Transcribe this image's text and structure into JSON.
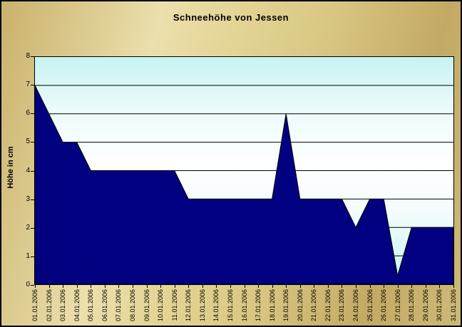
{
  "title": "Schneehöhe von Jessen",
  "colors": {
    "area_fill": "#000080",
    "area_stroke": "#000000",
    "grid_color": "#000000",
    "plot_bg_cyan": "#C7F3F3",
    "plot_bg_white": "#FFFFFF",
    "frame_gold_light": "#EBDFAC",
    "frame_gold_dark": "#C3AA64",
    "text_color": "#000000"
  },
  "chart_data": {
    "type": "area",
    "title": "Schneehöhe von Jessen",
    "xlabel": "",
    "ylabel": "Höhe in cm",
    "ylim": [
      0,
      8
    ],
    "yticks": [
      0,
      1,
      2,
      3,
      4,
      5,
      6,
      7,
      8
    ],
    "ytick_labels": [
      "0",
      "1",
      "2",
      "3",
      "4",
      "5",
      "6",
      "7",
      "8"
    ],
    "grid": "horizontal",
    "legend_position": "none",
    "categories": [
      "01.01.2006",
      "02.01.2006",
      "03.01.2006",
      "04.01.2006",
      "05.01.2006",
      "06.01.2006",
      "07.01.2006",
      "08.01.2006",
      "09.01.2006",
      "10.01.2006",
      "11.01.2006",
      "12.01.2006",
      "13.01.2006",
      "14.01.2006",
      "15.01.2006",
      "16.01.2006",
      "17.01.2006",
      "18.01.2006",
      "19.01.2006",
      "20.01.2006",
      "21.01.2006",
      "22.01.2006",
      "23.01.2006",
      "24.01.2006",
      "25.01.2006",
      "26.01.2006",
      "27.01.2006",
      "28.01.2006",
      "29.01.2006",
      "30.01.2006",
      "31.01.2006"
    ],
    "values": [
      7,
      6,
      5,
      5,
      4,
      4,
      4,
      4,
      4,
      4,
      4,
      3,
      3,
      3,
      3,
      3,
      3,
      3,
      6,
      3,
      3,
      3,
      3,
      2,
      3,
      3,
      0.3,
      2,
      2,
      2,
      2
    ]
  }
}
